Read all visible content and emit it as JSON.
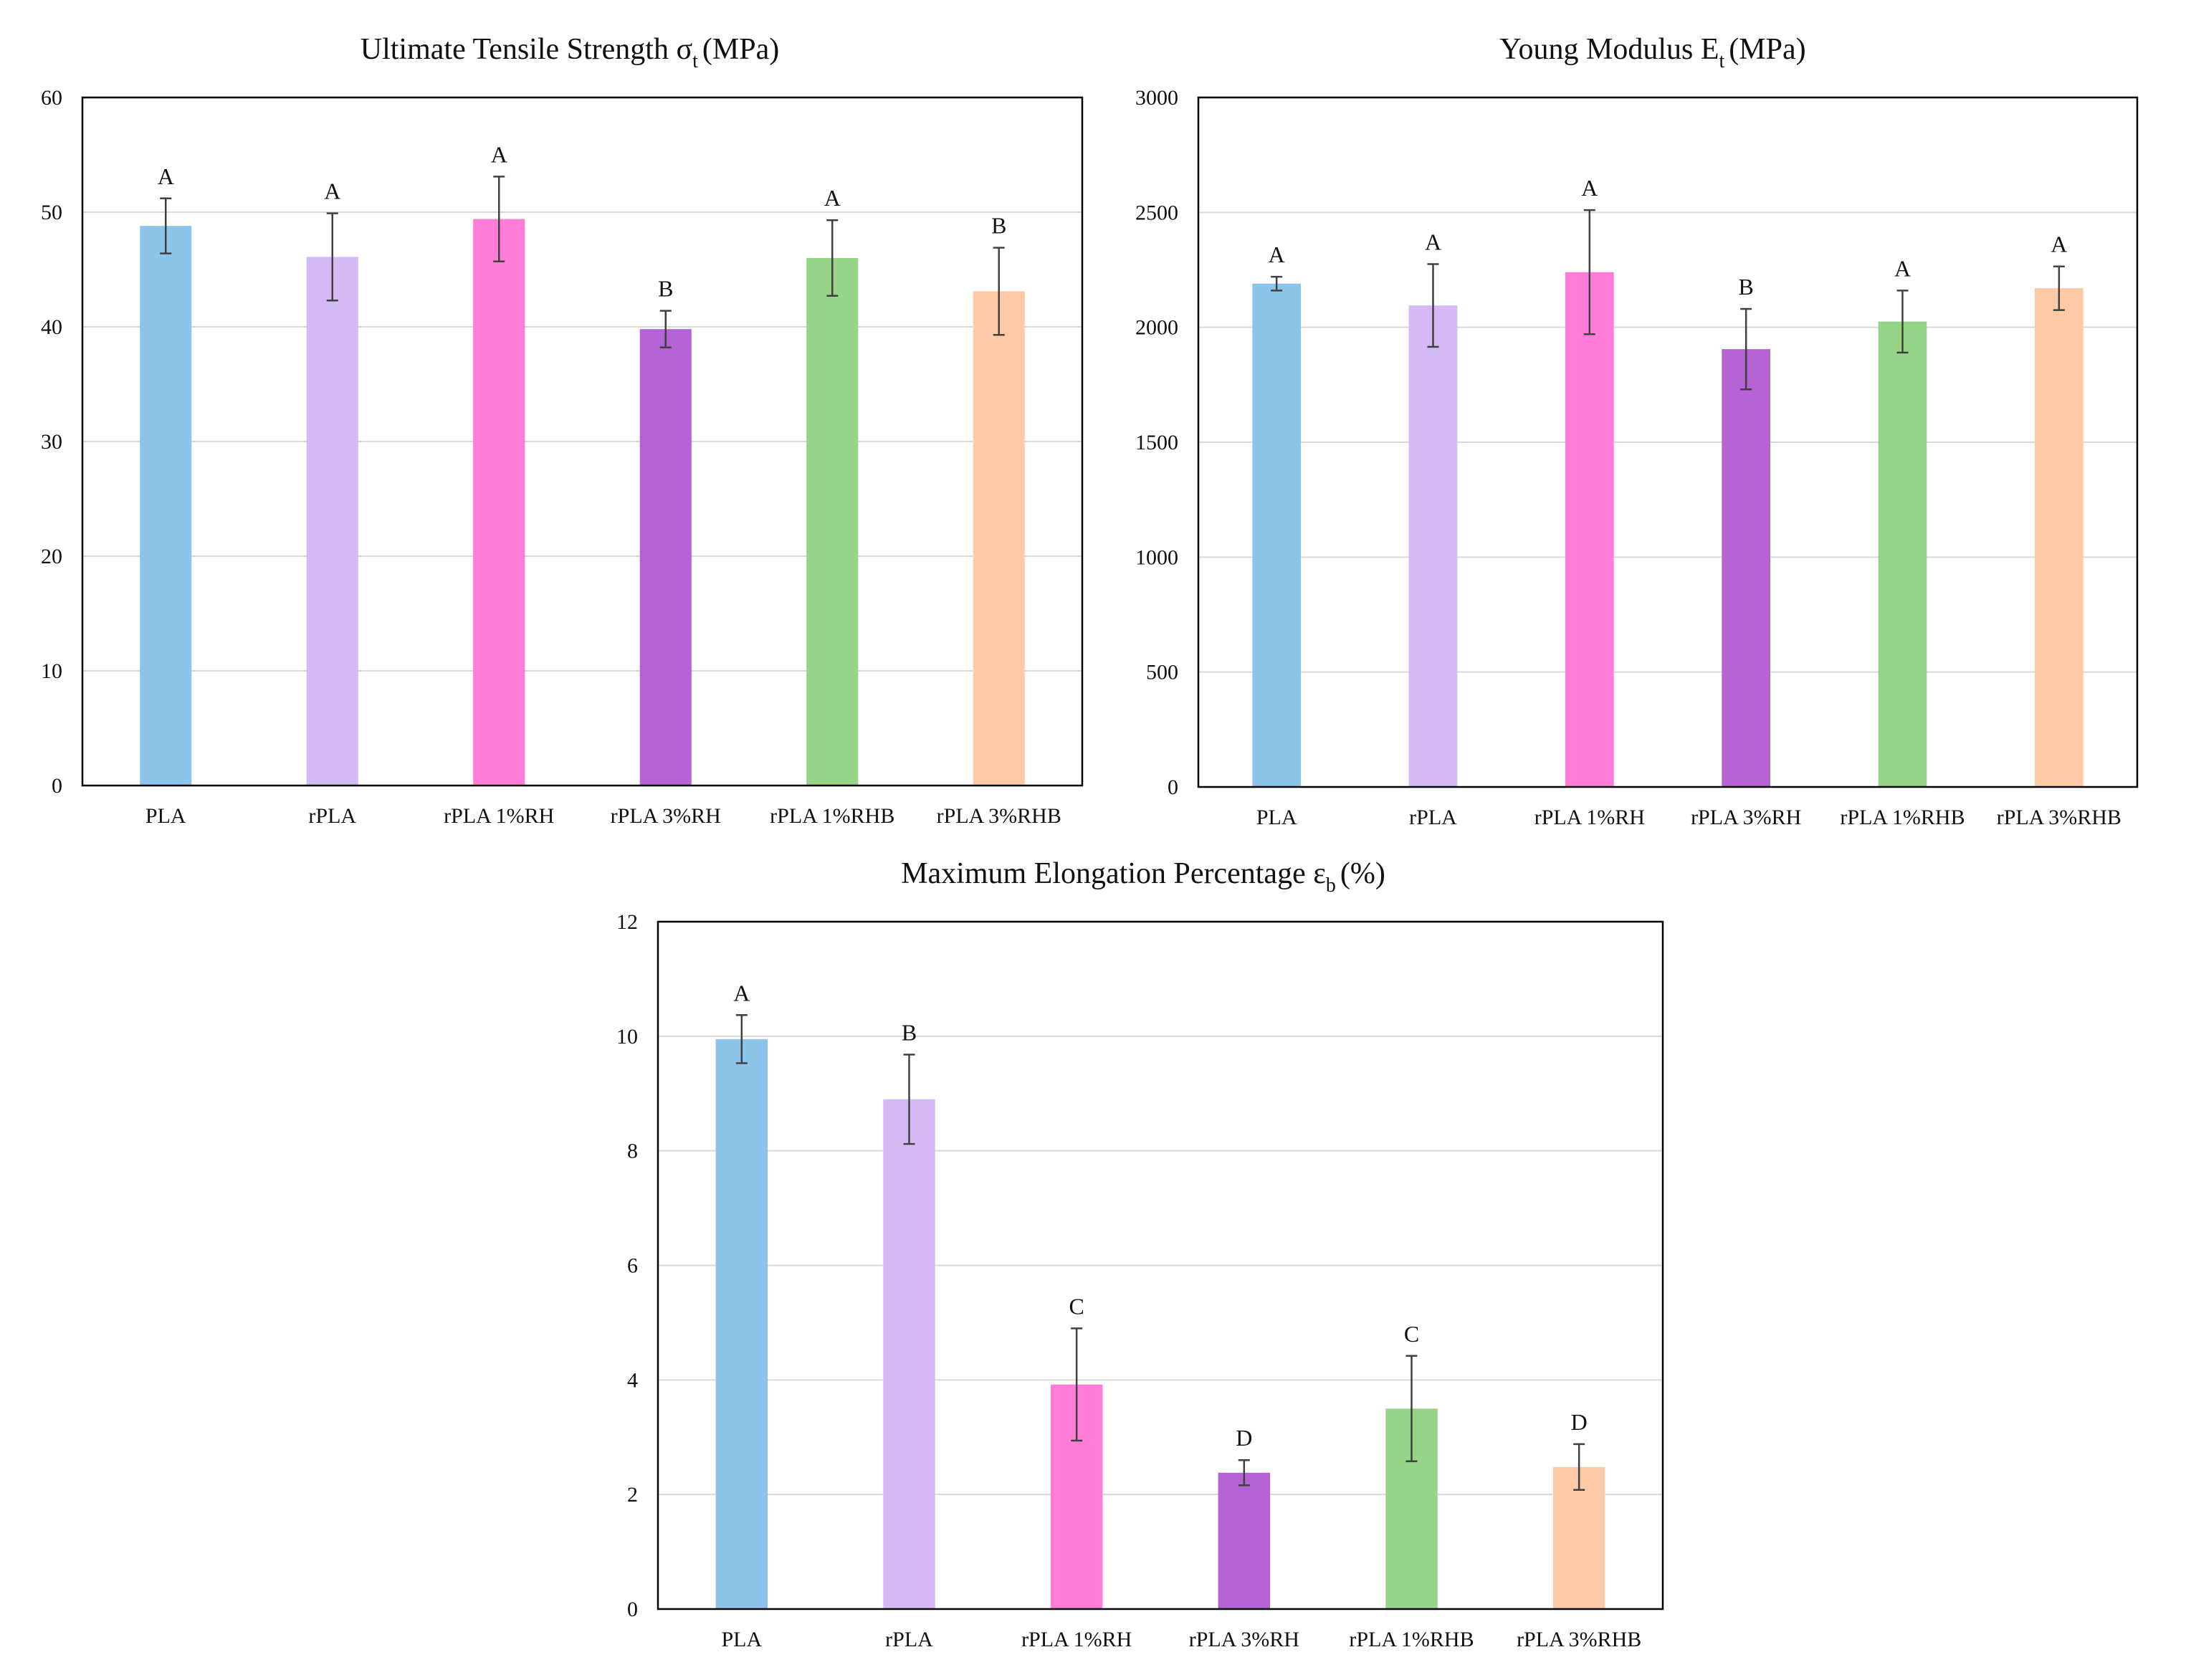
{
  "colors": {
    "bars": [
      "#8DC4EA",
      "#D4B9F4",
      "#FF7DD6",
      "#B462D4",
      "#96D488",
      "#FEC9A6"
    ],
    "grid": "#d9d9d9",
    "frame": "#000000",
    "error_bar": "#404040"
  },
  "chart_data": [
    {
      "type": "bar",
      "title": "Ultimate Tensile Strength σ",
      "title_sub": "t",
      "title_unit": "(MPa)",
      "categories": [
        "PLA",
        "rPLA",
        "rPLA 1%RH",
        "rPLA 3%RH",
        "rPLA 1%RHB",
        "rPLA 3%RHB"
      ],
      "values": [
        48.8,
        46.1,
        49.4,
        39.8,
        46.0,
        43.1
      ],
      "errors": [
        2.4,
        3.8,
        3.7,
        1.6,
        3.3,
        3.8
      ],
      "significance": [
        "A",
        "A",
        "A",
        "B",
        "A",
        "B"
      ],
      "ylim": [
        0,
        60
      ],
      "yticks": [
        0,
        10,
        20,
        30,
        40,
        50,
        60
      ],
      "grid": true
    },
    {
      "type": "bar",
      "title": "Young Modulus E",
      "title_sub": "t",
      "title_unit": "(MPa)",
      "categories": [
        "PLA",
        "rPLA",
        "rPLA 1%RH",
        "rPLA 3%RH",
        "rPLA 1%RHB",
        "rPLA 3%RHB"
      ],
      "values": [
        2190,
        2095,
        2240,
        1905,
        2025,
        2170
      ],
      "errors": [
        30,
        180,
        270,
        175,
        135,
        95
      ],
      "significance": [
        "A",
        "A",
        "A",
        "B",
        "A",
        "A"
      ],
      "ylim": [
        0,
        3000
      ],
      "yticks": [
        0,
        500,
        1000,
        1500,
        2000,
        2500,
        3000
      ],
      "grid": true
    },
    {
      "type": "bar",
      "title": "Maximum Elongation Percentage ε",
      "title_sub": "b",
      "title_unit": "(%)",
      "categories": [
        "PLA",
        "rPLA",
        "rPLA 1%RH",
        "rPLA 3%RH",
        "rPLA 1%RHB",
        "rPLA 3%RHB"
      ],
      "values": [
        9.95,
        8.9,
        3.92,
        2.38,
        3.5,
        2.48
      ],
      "errors": [
        0.42,
        0.78,
        0.98,
        0.22,
        0.92,
        0.4
      ],
      "significance": [
        "A",
        "B",
        "C",
        "D",
        "C",
        "D"
      ],
      "ylim": [
        0,
        12
      ],
      "yticks": [
        0,
        2,
        4,
        6,
        8,
        10,
        12
      ],
      "grid": true
    }
  ]
}
